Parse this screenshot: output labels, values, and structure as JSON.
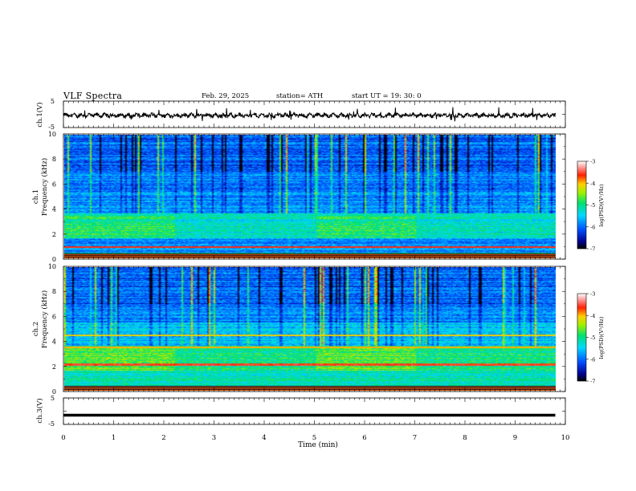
{
  "header": {
    "title": "VLF Spectra",
    "date": "Feb. 29, 2025",
    "station": "station= ATH",
    "start_ut": "start UT =   19: 30: 0"
  },
  "chart_data": [
    {
      "type": "line",
      "name": "ch1-waveform",
      "ylabel": "ch.1(V)",
      "ylim": [
        -5,
        5
      ],
      "yticks": [
        "5",
        "-5"
      ],
      "xlim": [
        0,
        10
      ],
      "note_series": "noisy waveform around ~ -0.5 V with spikes up to ~+1 V"
    },
    {
      "type": "heatmap",
      "name": "ch1-spectrogram",
      "ylabel": "ch.1 Frequency (kHz)",
      "ylim": [
        0,
        10
      ],
      "yticks": [
        "0",
        "2",
        "4",
        "6",
        "8",
        "10"
      ],
      "xlim": [
        0,
        9.8
      ],
      "colorbar": {
        "label": "log(PSD)(V²/Hz)",
        "range": [
          -7,
          -3
        ],
        "ticks": [
          "-3",
          "-4",
          "-5",
          "-6",
          "-7"
        ]
      }
    },
    {
      "type": "heatmap",
      "name": "ch2-spectrogram",
      "ylabel": "ch.2 Frequency (kHz)",
      "ylim": [
        0,
        10
      ],
      "yticks": [
        "0",
        "2",
        "4",
        "6",
        "8",
        "10"
      ],
      "xlim": [
        0,
        9.8
      ],
      "colorbar": {
        "label": "log(PSD)(V²/Hz)",
        "range": [
          -7,
          -3
        ],
        "ticks": [
          "-3",
          "-4",
          "-5",
          "-6",
          "-7"
        ]
      }
    },
    {
      "type": "line",
      "name": "ch3-waveform",
      "ylabel": "ch.3(V)",
      "ylim": [
        -5,
        5
      ],
      "yticks": [
        "5",
        "-5"
      ],
      "xlim": [
        0,
        10
      ],
      "note_series": "flat trace near -1.5 V"
    }
  ],
  "x_axis": {
    "label": "Time (min)",
    "ticks": [
      "0",
      "1",
      "2",
      "3",
      "4",
      "5",
      "6",
      "7",
      "8",
      "9",
      "10"
    ]
  }
}
